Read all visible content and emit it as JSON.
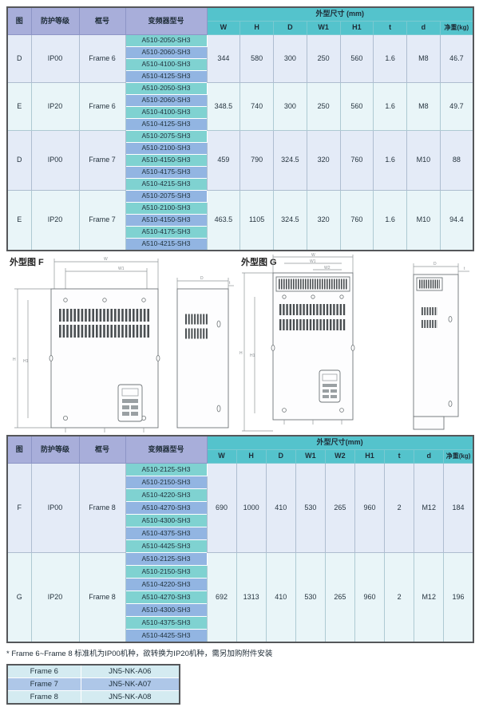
{
  "colors": {
    "header_teal": "#54c3cc",
    "header_lavender": "#a8aeda",
    "model_teal": "#7fd2d1",
    "model_blue": "#92b5e2",
    "block_lavender": "#e4ebf7",
    "block_cyan": "#e9f5f8",
    "accessory_cyan": "#d4ebf1",
    "accessory_blue": "#aec7e8"
  },
  "table1": {
    "col_headers_left": [
      "图",
      "防护等级",
      "框号",
      "变频器型号"
    ],
    "dim_group_label": "外型尺寸 (mm)",
    "dim_headers": [
      "W",
      "H",
      "D",
      "W1",
      "H1",
      "t",
      "d",
      "净重(kg)"
    ],
    "blocks": [
      {
        "figure": "D",
        "protection": "IP00",
        "frame": "Frame 6",
        "models": [
          "A510-2050-SH3",
          "A510-2060-SH3",
          "A510-4100-SH3",
          "A510-4125-SH3"
        ],
        "dims": [
          "344",
          "580",
          "300",
          "250",
          "560",
          "1.6",
          "M8",
          "46.7"
        ]
      },
      {
        "figure": "E",
        "protection": "IP20",
        "frame": "Frame 6",
        "models": [
          "A510-2050-SH3",
          "A510-2060-SH3",
          "A510-4100-SH3",
          "A510-4125-SH3"
        ],
        "dims": [
          "348.5",
          "740",
          "300",
          "250",
          "560",
          "1.6",
          "M8",
          "49.7"
        ]
      },
      {
        "figure": "D",
        "protection": "IP00",
        "frame": "Frame 7",
        "models": [
          "A510-2075-SH3",
          "A510-2100-SH3",
          "A510-4150-SH3",
          "A510-4175-SH3",
          "A510-4215-SH3"
        ],
        "dims": [
          "459",
          "790",
          "324.5",
          "320",
          "760",
          "1.6",
          "M10",
          "88"
        ]
      },
      {
        "figure": "E",
        "protection": "IP20",
        "frame": "Frame 7",
        "models": [
          "A510-2075-SH3",
          "A510-2100-SH3",
          "A510-4150-SH3",
          "A510-4175-SH3",
          "A510-4215-SH3"
        ],
        "dims": [
          "463.5",
          "1105",
          "324.5",
          "320",
          "760",
          "1.6",
          "M10",
          "94.4"
        ]
      }
    ]
  },
  "drawings": {
    "f_label": "外型图 F",
    "g_label": "外型图 G",
    "dim_marks": {
      "w": "W",
      "w1": "W1",
      "w2": "W2",
      "h": "H",
      "h1": "H1",
      "d": "D",
      "t": "t"
    }
  },
  "table2": {
    "col_headers_left": [
      "图",
      "防护等级",
      "框号",
      "变频器型号"
    ],
    "dim_group_label": "外型尺寸(mm)",
    "dim_headers": [
      "W",
      "H",
      "D",
      "W1",
      "W2",
      "H1",
      "t",
      "d",
      "净重(kg)"
    ],
    "blocks": [
      {
        "figure": "F",
        "protection": "IP00",
        "frame": "Frame 8",
        "models": [
          "A510-2125-SH3",
          "A510-2150-SH3",
          "A510-4220-SH3",
          "A510-4270-SH3",
          "A510-4300-SH3",
          "A510-4375-SH3",
          "A510-4425-SH3"
        ],
        "dims": [
          "690",
          "1000",
          "410",
          "530",
          "265",
          "960",
          "2",
          "M12",
          "184"
        ]
      },
      {
        "figure": "G",
        "protection": "IP20",
        "frame": "Frame 8",
        "models": [
          "A510-2125-SH3",
          "A510-2150-SH3",
          "A510-4220-SH3",
          "A510-4270-SH3",
          "A510-4300-SH3",
          "A510-4375-SH3",
          "A510-4425-SH3"
        ],
        "dims": [
          "692",
          "1313",
          "410",
          "530",
          "265",
          "960",
          "2",
          "M12",
          "196"
        ]
      }
    ]
  },
  "footnote": "* Frame 6~Frame 8 标准机为IP00机种，欲转换为IP20机种，需另加购附件安装",
  "accessory_table": {
    "rows": [
      {
        "frame": "Frame 6",
        "part_no": "JN5-NK-A06"
      },
      {
        "frame": "Frame 7",
        "part_no": "JN5-NK-A07"
      },
      {
        "frame": "Frame 8",
        "part_no": "JN5-NK-A08"
      }
    ]
  }
}
